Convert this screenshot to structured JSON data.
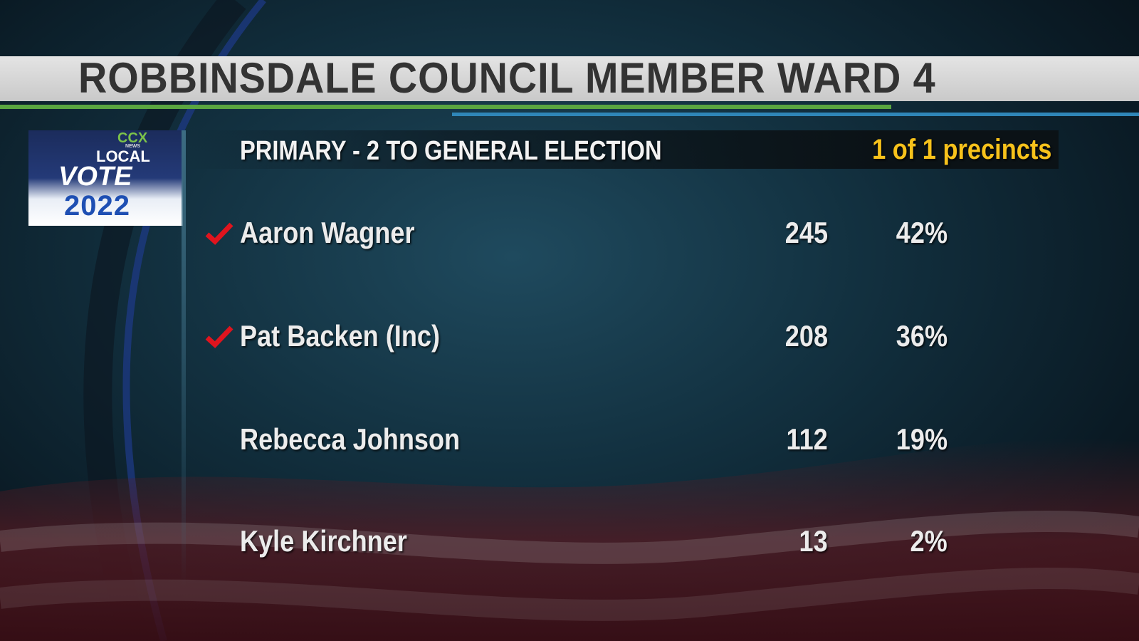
{
  "header": {
    "title": "ROBBINSDALE COUNCIL MEMBER WARD 4"
  },
  "logo": {
    "brand": "CCX",
    "brand_sub": "NEWS",
    "line1": "LOCAL",
    "line2": "VOTE",
    "year": "2022"
  },
  "subheader": {
    "race": "PRIMARY - 2 TO GENERAL ELECTION",
    "precincts": "1 of 1 precincts"
  },
  "results": {
    "rows": [
      {
        "name": "Aaron Wagner",
        "votes": "245",
        "percent": "42%",
        "winner": true
      },
      {
        "name": "Pat Backen (Inc)",
        "votes": "208",
        "percent": "36%",
        "winner": true
      },
      {
        "name": "Rebecca Johnson",
        "votes": "112",
        "percent": "19%",
        "winner": false
      },
      {
        "name": "Kyle Kirchner",
        "votes": "13",
        "percent": "2%",
        "winner": false
      }
    ]
  }
}
